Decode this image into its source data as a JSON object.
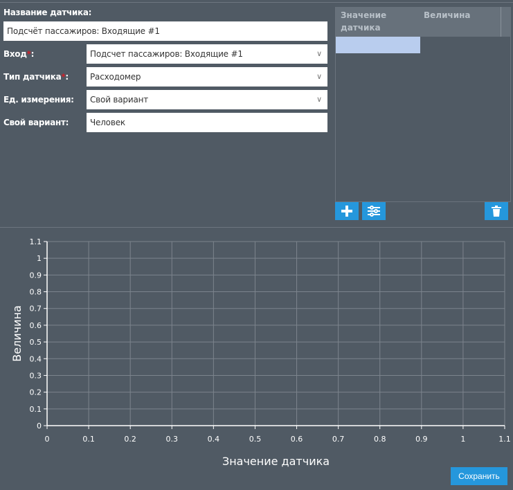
{
  "form": {
    "name_label": "Название датчика:",
    "name_value": "Подсчёт пассажиров: Входящие #1",
    "input_label": "Вход",
    "input_value": "Подсчет пассажиров: Входящие #1",
    "type_label": "Тип датчика",
    "type_value": "Расходомер",
    "unit_label": "Ед. измерения:",
    "unit_value": "Свой вариант",
    "custom_label": "Свой вариант:",
    "custom_value": "Человек",
    "required_mark": "*",
    "colon": ":"
  },
  "table": {
    "columns": [
      "Значение датчика",
      "Величина"
    ],
    "selected_row_color": "#b9cdee"
  },
  "toolbar": {
    "add_icon": "plus-icon",
    "settings_icon": "sliders-icon",
    "delete_icon": "trash-icon",
    "accent": "#2597dc"
  },
  "chart_data": {
    "type": "line",
    "xlabel": "Значение датчика",
    "ylabel": "Величина",
    "xlim": [
      0,
      1.1
    ],
    "ylim": [
      0,
      1.1
    ],
    "xticks": [
      "0",
      "0.1",
      "0.2",
      "0.3",
      "0.4",
      "0.5",
      "0.6",
      "0.7",
      "0.8",
      "0.9",
      "1",
      "1.1"
    ],
    "yticks": [
      "0",
      "0.1",
      "0.2",
      "0.3",
      "0.4",
      "0.5",
      "0.6",
      "0.7",
      "0.8",
      "0.9",
      "1",
      "1.1"
    ],
    "grid": true,
    "series": []
  },
  "save_label": "Сохранить"
}
